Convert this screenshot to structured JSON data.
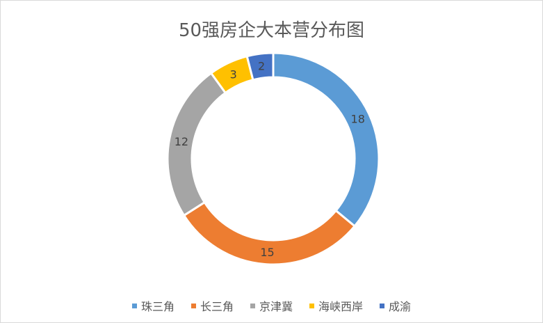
{
  "chart_data": {
    "type": "pie",
    "donut": true,
    "title": "50强房企大本营分布图",
    "categories": [
      "珠三角",
      "长三角",
      "京津冀",
      "海峡西岸",
      "成渝"
    ],
    "values": [
      18,
      15,
      12,
      3,
      2
    ],
    "colors": [
      "#5B9BD5",
      "#ED7D31",
      "#A5A5A5",
      "#FFC000",
      "#4472C4"
    ],
    "data_labels": true,
    "legend_position": "bottom"
  }
}
